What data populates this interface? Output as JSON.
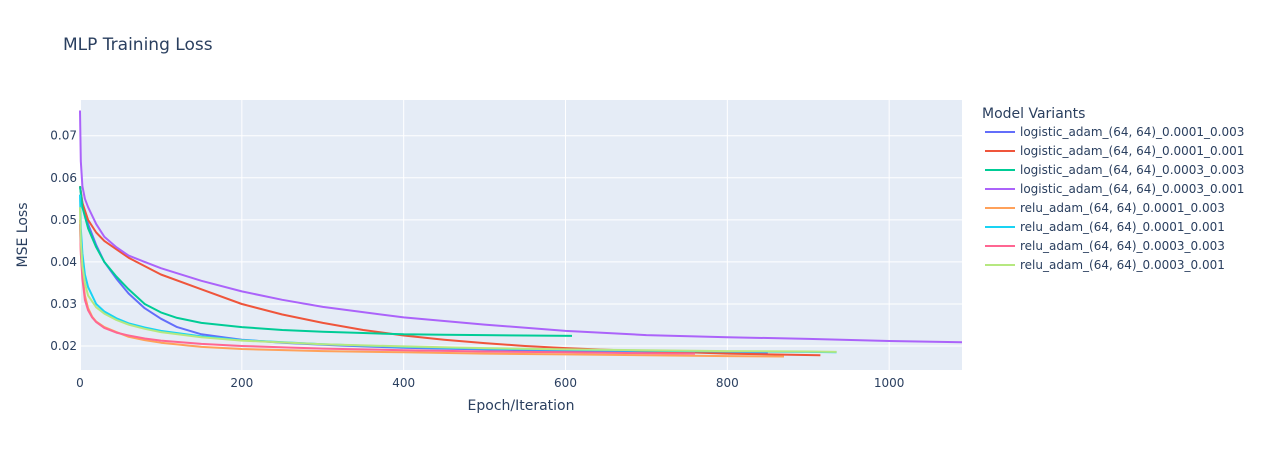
{
  "chart_data": {
    "type": "line",
    "title": "MLP Training Loss",
    "xlabel": "Epoch/Iteration",
    "ylabel": "MSE Loss",
    "xlim": [
      0,
      1090
    ],
    "ylim": [
      0.0143,
      0.0785
    ],
    "xticks": [
      0,
      200,
      400,
      600,
      800,
      1000
    ],
    "yticks": [
      0.02,
      0.03,
      0.04,
      0.05,
      0.06,
      0.07
    ],
    "xtick_labels": [
      "0",
      "200",
      "400",
      "600",
      "800",
      "1000"
    ],
    "ytick_labels": [
      "0.02",
      "0.03",
      "0.04",
      "0.05",
      "0.06",
      "0.07"
    ],
    "grid": true,
    "legend": {
      "title": "Model Variants",
      "position": "right"
    },
    "series": [
      {
        "name": "logistic_adam_(64, 64)_0.0001_0.003",
        "color": "#636efa",
        "x": [
          0,
          3,
          10,
          20,
          30,
          45,
          60,
          80,
          100,
          120,
          150,
          180,
          200,
          250,
          300,
          350,
          400,
          450,
          500,
          550,
          600,
          650,
          700,
          750,
          800,
          850
        ],
        "y": [
          0.058,
          0.054,
          0.049,
          0.044,
          0.04,
          0.036,
          0.0325,
          0.029,
          0.0265,
          0.0245,
          0.0228,
          0.022,
          0.0215,
          0.0208,
          0.0203,
          0.0199,
          0.0196,
          0.0194,
          0.0192,
          0.019,
          0.0189,
          0.0188,
          0.0187,
          0.0186,
          0.0185,
          0.0184
        ]
      },
      {
        "name": "logistic_adam_(64, 64)_0.0001_0.001",
        "color": "#ef553b",
        "x": [
          0,
          3,
          10,
          20,
          30,
          45,
          60,
          80,
          100,
          150,
          200,
          250,
          300,
          350,
          400,
          450,
          500,
          550,
          600,
          650,
          700,
          750,
          800,
          850,
          915
        ],
        "y": [
          0.058,
          0.054,
          0.05,
          0.047,
          0.045,
          0.043,
          0.041,
          0.039,
          0.037,
          0.0335,
          0.03,
          0.0275,
          0.0255,
          0.0238,
          0.0225,
          0.0215,
          0.0207,
          0.02,
          0.0195,
          0.0191,
          0.0188,
          0.0185,
          0.0182,
          0.018,
          0.0178
        ]
      },
      {
        "name": "logistic_adam_(64, 64)_0.0003_0.003",
        "color": "#00cc96",
        "x": [
          0,
          3,
          10,
          20,
          30,
          45,
          60,
          80,
          100,
          120,
          150,
          200,
          250,
          300,
          350,
          400,
          450,
          500,
          550,
          608
        ],
        "y": [
          0.058,
          0.053,
          0.048,
          0.0435,
          0.04,
          0.0365,
          0.0335,
          0.03,
          0.028,
          0.0267,
          0.0255,
          0.0245,
          0.0238,
          0.0234,
          0.0231,
          0.0228,
          0.0227,
          0.0226,
          0.0225,
          0.0224
        ]
      },
      {
        "name": "logistic_adam_(64, 64)_0.0003_0.001",
        "color": "#ab63fa",
        "x": [
          0,
          1,
          3,
          6,
          10,
          20,
          30,
          45,
          60,
          80,
          100,
          150,
          200,
          250,
          300,
          400,
          500,
          600,
          700,
          800,
          900,
          1000,
          1090
        ],
        "y": [
          0.076,
          0.064,
          0.058,
          0.055,
          0.053,
          0.049,
          0.046,
          0.0435,
          0.0415,
          0.04,
          0.0385,
          0.0355,
          0.033,
          0.031,
          0.0293,
          0.0268,
          0.0251,
          0.0236,
          0.0226,
          0.0221,
          0.0217,
          0.0212,
          0.0209
        ]
      },
      {
        "name": "relu_adam_(64, 64)_0.0001_0.003",
        "color": "#ffa15a",
        "x": [
          0,
          1,
          3,
          6,
          10,
          15,
          20,
          30,
          45,
          60,
          80,
          100,
          150,
          200,
          300,
          400,
          500,
          600,
          700,
          800,
          870
        ],
        "y": [
          0.05,
          0.043,
          0.037,
          0.032,
          0.029,
          0.027,
          0.0258,
          0.0245,
          0.0233,
          0.0222,
          0.0214,
          0.0208,
          0.0198,
          0.0193,
          0.0188,
          0.0185,
          0.0182,
          0.018,
          0.0178,
          0.0176,
          0.0175
        ]
      },
      {
        "name": "relu_adam_(64, 64)_0.0001_0.001",
        "color": "#19d3f3",
        "x": [
          0,
          1,
          3,
          6,
          10,
          20,
          30,
          45,
          60,
          80,
          100,
          150,
          200,
          300,
          400,
          500,
          600,
          700,
          800,
          900,
          935
        ],
        "y": [
          0.056,
          0.048,
          0.042,
          0.037,
          0.034,
          0.03,
          0.0282,
          0.0266,
          0.0254,
          0.0244,
          0.0236,
          0.0223,
          0.0214,
          0.0204,
          0.0198,
          0.0194,
          0.0191,
          0.0189,
          0.0187,
          0.0186,
          0.0185
        ]
      },
      {
        "name": "relu_adam_(64, 64)_0.0003_0.003",
        "color": "#ff6692",
        "x": [
          0,
          1,
          3,
          6,
          10,
          15,
          20,
          30,
          45,
          60,
          80,
          100,
          150,
          200,
          300,
          400,
          500,
          600,
          700,
          760
        ],
        "y": [
          0.049,
          0.042,
          0.036,
          0.031,
          0.0285,
          0.0268,
          0.0257,
          0.0243,
          0.0232,
          0.0225,
          0.0218,
          0.0213,
          0.0205,
          0.02,
          0.0194,
          0.019,
          0.0187,
          0.0185,
          0.0183,
          0.0182
        ]
      },
      {
        "name": "relu_adam_(64, 64)_0.0003_0.001",
        "color": "#b6e880",
        "x": [
          0,
          1,
          3,
          6,
          10,
          20,
          30,
          45,
          60,
          80,
          100,
          150,
          200,
          300,
          400,
          500,
          600,
          700,
          800,
          900,
          935
        ],
        "y": [
          0.053,
          0.045,
          0.039,
          0.035,
          0.032,
          0.0292,
          0.0277,
          0.0262,
          0.0251,
          0.0241,
          0.0233,
          0.0221,
          0.0213,
          0.0204,
          0.0199,
          0.0195,
          0.0192,
          0.019,
          0.0188,
          0.0187,
          0.0186
        ]
      }
    ]
  }
}
